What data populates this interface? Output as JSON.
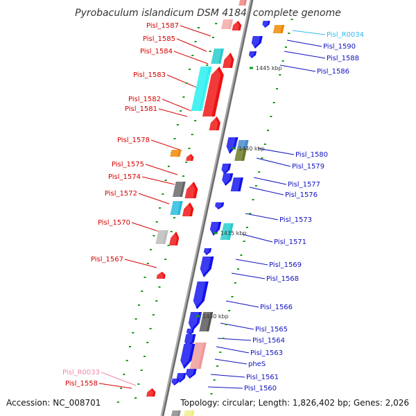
{
  "title": "Pyrobaculum islandicum DSM 4184, complete genome",
  "footer": {
    "accession": "Accession: NC_008701",
    "topology": "Topology: circular; Length: 1,826,402 bp; Genes: 2,026"
  },
  "colors": {
    "left_label": "#d40000",
    "right_label": "#1010c0",
    "trna_right": "#33bbee",
    "trna_left": "#ee88aa",
    "backbone": "#888888",
    "tick": "#119911"
  },
  "scale_ticks": [
    "1445 kbp",
    "1440 kbp",
    "1435 kbp",
    "1430 kbp"
  ],
  "left_labels": [
    {
      "text": "Pisl_1587",
      "kind": "gene"
    },
    {
      "text": "Pisl_1585",
      "kind": "gene"
    },
    {
      "text": "Pisl_1584",
      "kind": "gene"
    },
    {
      "text": "Pisl_1583",
      "kind": "gene"
    },
    {
      "text": "Pisl_1582",
      "kind": "gene"
    },
    {
      "text": "Pisl_1581",
      "kind": "gene"
    },
    {
      "text": "Pisl_1578",
      "kind": "gene"
    },
    {
      "text": "Pisl_1575",
      "kind": "gene"
    },
    {
      "text": "Pisl_1574",
      "kind": "gene"
    },
    {
      "text": "Pisl_1572",
      "kind": "gene"
    },
    {
      "text": "Pisl_1570",
      "kind": "gene"
    },
    {
      "text": "Pisl_1567",
      "kind": "gene"
    },
    {
      "text": "Pisl_R0033",
      "kind": "rna"
    },
    {
      "text": "Pisl_1558",
      "kind": "gene"
    }
  ],
  "right_labels": [
    {
      "text": "Pisl_R0034",
      "kind": "rna"
    },
    {
      "text": "Pisl_1590",
      "kind": "gene"
    },
    {
      "text": "Pisl_1588",
      "kind": "gene"
    },
    {
      "text": "Pisl_1586",
      "kind": "gene"
    },
    {
      "text": "Pisl_1580",
      "kind": "gene"
    },
    {
      "text": "Pisl_1579",
      "kind": "gene"
    },
    {
      "text": "Pisl_1577",
      "kind": "gene"
    },
    {
      "text": "Pisl_1576",
      "kind": "gene"
    },
    {
      "text": "Pisl_1573",
      "kind": "gene"
    },
    {
      "text": "Pisl_1571",
      "kind": "gene"
    },
    {
      "text": "Pisl_1569",
      "kind": "gene"
    },
    {
      "text": "Pisl_1568",
      "kind": "gene"
    },
    {
      "text": "Pisl_1566",
      "kind": "gene"
    },
    {
      "text": "Pisl_1565",
      "kind": "gene"
    },
    {
      "text": "Pisl_1564",
      "kind": "gene"
    },
    {
      "text": "Pisl_1563",
      "kind": "gene"
    },
    {
      "text": "pheS",
      "kind": "gene"
    },
    {
      "text": "Pisl_1561",
      "kind": "gene"
    },
    {
      "text": "Pisl_1560",
      "kind": "gene"
    }
  ]
}
